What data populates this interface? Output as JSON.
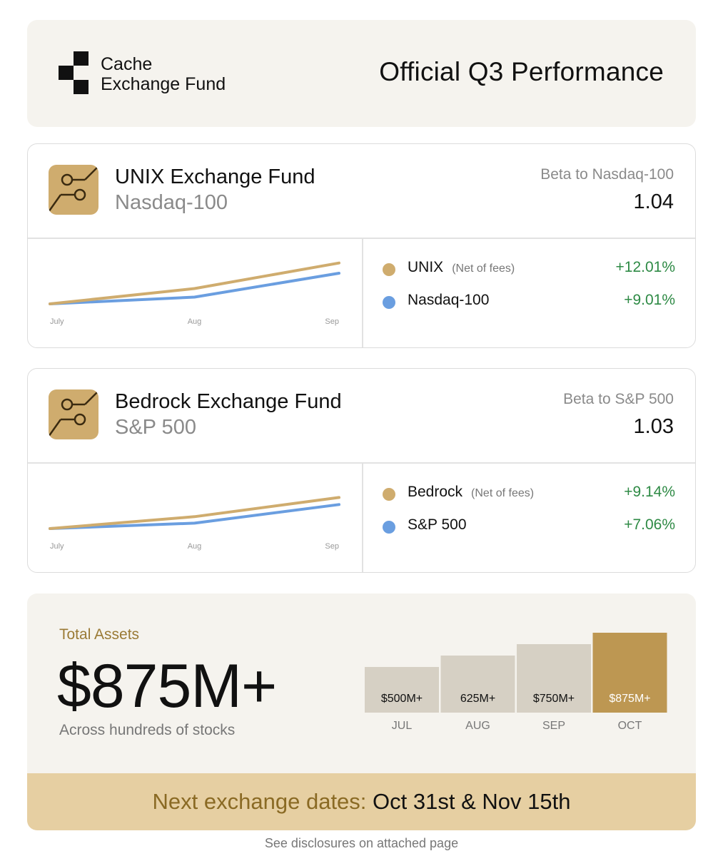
{
  "header": {
    "logo_line1": "Cache",
    "logo_line2": "Exchange Fund",
    "title": "Official Q3 Performance"
  },
  "funds": [
    {
      "name": "UNIX Exchange Fund",
      "index": "Nasdaq-100",
      "beta_label": "Beta to Nasdaq-100",
      "beta_value": "1.04",
      "legend": [
        {
          "name": "UNIX",
          "note": "(Net of fees)",
          "pct": "+12.01%",
          "color": "#cfac6e"
        },
        {
          "name": "Nasdaq-100",
          "note": "",
          "pct": "+9.01%",
          "color": "#6a9ee0"
        }
      ],
      "chart_data": {
        "type": "line",
        "categories": [
          "July",
          "Aug",
          "Sep"
        ],
        "series": [
          {
            "name": "UNIX",
            "values": [
              0,
              4.5,
              12.01
            ],
            "color": "#cfac6e"
          },
          {
            "name": "Nasdaq-100",
            "values": [
              0,
              2.0,
              9.01
            ],
            "color": "#6a9ee0"
          }
        ],
        "ylim": [
          0,
          13
        ]
      }
    },
    {
      "name": "Bedrock Exchange Fund",
      "index": "S&P 500",
      "beta_label": "Beta to S&P 500",
      "beta_value": "1.03",
      "legend": [
        {
          "name": "Bedrock",
          "note": "(Net of fees)",
          "pct": "+9.14%",
          "color": "#cfac6e"
        },
        {
          "name": "S&P 500",
          "note": "",
          "pct": "+7.06%",
          "color": "#6a9ee0"
        }
      ],
      "chart_data": {
        "type": "line",
        "categories": [
          "July",
          "Aug",
          "Sep"
        ],
        "series": [
          {
            "name": "Bedrock",
            "values": [
              0,
              3.5,
              9.14
            ],
            "color": "#cfac6e"
          },
          {
            "name": "S&P 500",
            "values": [
              0,
              1.6,
              7.06
            ],
            "color": "#6a9ee0"
          }
        ],
        "ylim": [
          0,
          13
        ]
      }
    }
  ],
  "assets": {
    "label": "Total Assets",
    "value": "$875M+",
    "sub": "Across hundreds of stocks",
    "chart_data": {
      "type": "bar",
      "categories": [
        "JUL",
        "AUG",
        "SEP",
        "OCT"
      ],
      "values": [
        500,
        625,
        750,
        875
      ],
      "labels": [
        "$500M+",
        "625M+",
        "$750M+",
        "$875M+"
      ],
      "highlight_index": 3,
      "colors": {
        "default": "#d6d0c4",
        "highlight": "#bd9752"
      }
    }
  },
  "exchange": {
    "label": "Next exchange dates:",
    "dates": "Oct 31st & Nov 15th"
  },
  "disclosure": "See disclosures on attached page"
}
